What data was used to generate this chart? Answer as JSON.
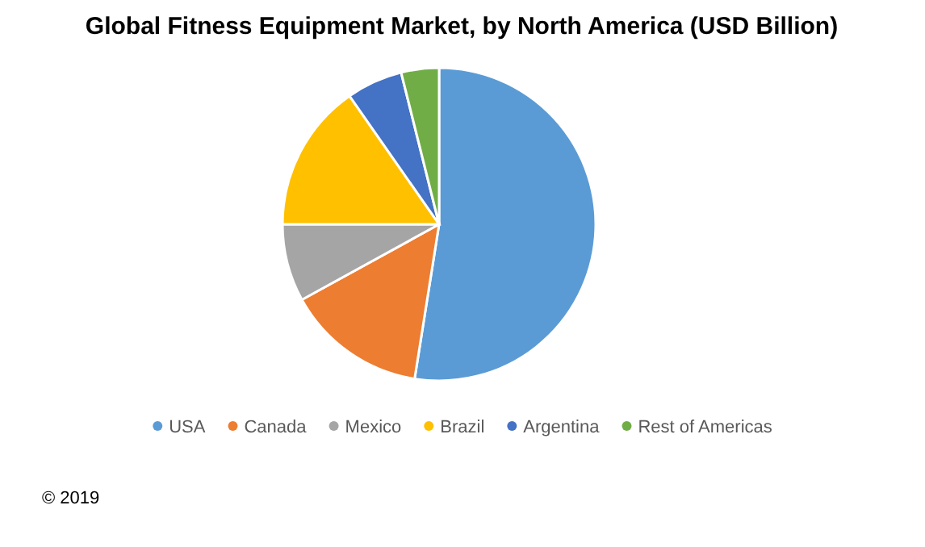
{
  "chart_data": {
    "type": "pie",
    "title": "Global Fitness Equipment Market, by North America (USD Billion)",
    "categories": [
      "USA",
      "Canada",
      "Mexico",
      "Brazil",
      "Argentina",
      "Rest of Americas"
    ],
    "values": [
      52.5,
      14.5,
      8,
      15.3,
      5.8,
      3.9
    ],
    "colors": [
      "#5b9bd5",
      "#ed7d31",
      "#a5a5a5",
      "#ffc000",
      "#4472c4",
      "#70ad47"
    ],
    "legend": "bottom",
    "annotations": [
      "© 2019"
    ]
  }
}
